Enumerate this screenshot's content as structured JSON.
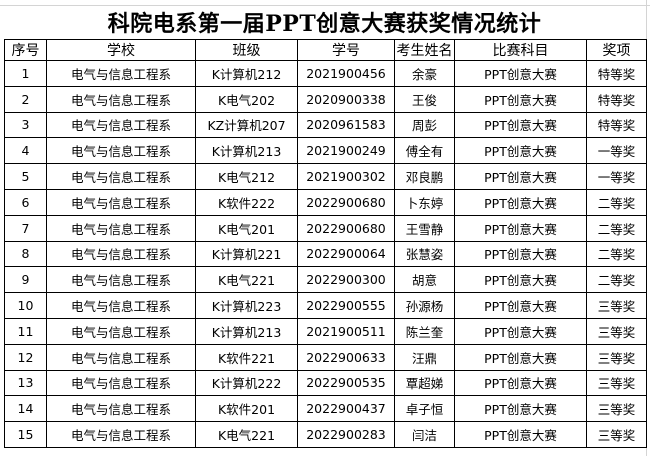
{
  "title": "科院电系第一届PPT创意大赛获奖情况统计",
  "headers": [
    "序号",
    "学校",
    "班级",
    "学号",
    "考生姓名",
    "比赛科目",
    "奖项"
  ],
  "rows": [
    [
      "1",
      "电气与信息工程系",
      "K计算机212",
      "2021900456",
      "余豪",
      "PPT创意大赛",
      "特等奖"
    ],
    [
      "2",
      "电气与信息工程系",
      "K电气202",
      "2020900338",
      "王俊",
      "PPT创意大赛",
      "特等奖"
    ],
    [
      "3",
      "电气与信息工程系",
      "KZ计算机207",
      "2020961583",
      "周彭",
      "PPT创意大赛",
      "特等奖"
    ],
    [
      "4",
      "电气与信息工程系",
      "K计算机213",
      "2021900249",
      "傅全有",
      "PPT创意大赛",
      "一等奖"
    ],
    [
      "5",
      "电气与信息工程系",
      "K电气212",
      "2021900302",
      "邓良鹏",
      "PPT创意大赛",
      "一等奖"
    ],
    [
      "6",
      "电气与信息工程系",
      "K软件222",
      "2022900680",
      "卜东婷",
      "PPT创意大赛",
      "二等奖"
    ],
    [
      "7",
      "电气与信息工程系",
      "K电气201",
      "2022900680",
      "王雪静",
      "PPT创意大赛",
      "二等奖"
    ],
    [
      "8",
      "电气与信息工程系",
      "K计算机221",
      "2022900064",
      "张慧姿",
      "PPT创意大赛",
      "二等奖"
    ],
    [
      "9",
      "电气与信息工程系",
      "K电气221",
      "2022900300",
      "胡意",
      "PPT创意大赛",
      "二等奖"
    ],
    [
      "10",
      "电气与信息工程系",
      "K计算机223",
      "2022900555",
      "孙源杨",
      "PPT创意大赛",
      "三等奖"
    ],
    [
      "11",
      "电气与信息工程系",
      "K计算机213",
      "2021900511",
      "陈兰奎",
      "PPT创意大赛",
      "三等奖"
    ],
    [
      "12",
      "电气与信息工程系",
      "K软件221",
      "2022900633",
      "汪鼎",
      "PPT创意大赛",
      "三等奖"
    ],
    [
      "13",
      "电气与信息工程系",
      "K计算机222",
      "2022900535",
      "覃超娣",
      "PPT创意大赛",
      "三等奖"
    ],
    [
      "14",
      "电气与信息工程系",
      "K软件201",
      "2022900437",
      "卓子恒",
      "PPT创意大赛",
      "三等奖"
    ],
    [
      "15",
      "电气与信息工程系",
      "K电气221",
      "2022900283",
      "闫洁",
      "PPT创意大赛",
      "三等奖"
    ]
  ]
}
